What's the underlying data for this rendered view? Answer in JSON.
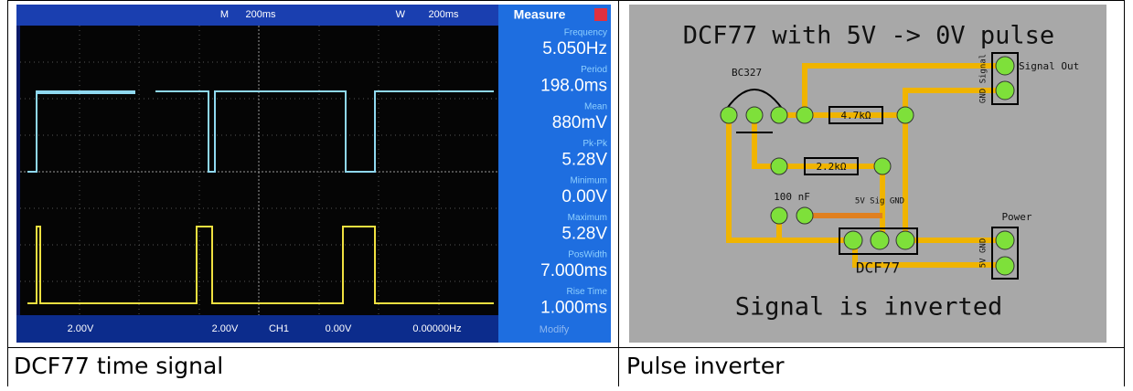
{
  "oscilloscope": {
    "top_bar": [
      "M",
      "200ms",
      "W",
      "200ms"
    ],
    "measure_title": "Measure",
    "measurements": [
      {
        "label": "Frequency",
        "value": "5.050Hz"
      },
      {
        "label": "Period",
        "value": "198.0ms"
      },
      {
        "label": "Mean",
        "value": "880mV"
      },
      {
        "label": "Pk-Pk",
        "value": "5.28V"
      },
      {
        "label": "Minimum",
        "value": "0.00V"
      },
      {
        "label": "Maximum",
        "value": "5.28V"
      },
      {
        "label": "PosWidth",
        "value": "7.000ms"
      },
      {
        "label": "Rise Time",
        "value": "1.000ms"
      }
    ],
    "bottom_bar": [
      "2.00V",
      "2.00V",
      "CH1",
      "0.00V",
      "0.00000Hz"
    ],
    "modify": "Modify"
  },
  "pcb": {
    "title": "DCF77 with 5V -> 0V pulse",
    "transistor": "BC327",
    "resistor_1": "4.7kΩ",
    "resistor_2": "2.2kΩ",
    "capacitor": "100 nF",
    "header_pins": "5V Sig GND",
    "module": "DCF77",
    "signal_out": "Signal Out",
    "signal_pins": "GND Signal",
    "power": "Power",
    "power_pins": "5V GND",
    "footer": "Signal is inverted"
  },
  "captions": [
    "DCF77 time signal",
    "Pulse inverter"
  ]
}
